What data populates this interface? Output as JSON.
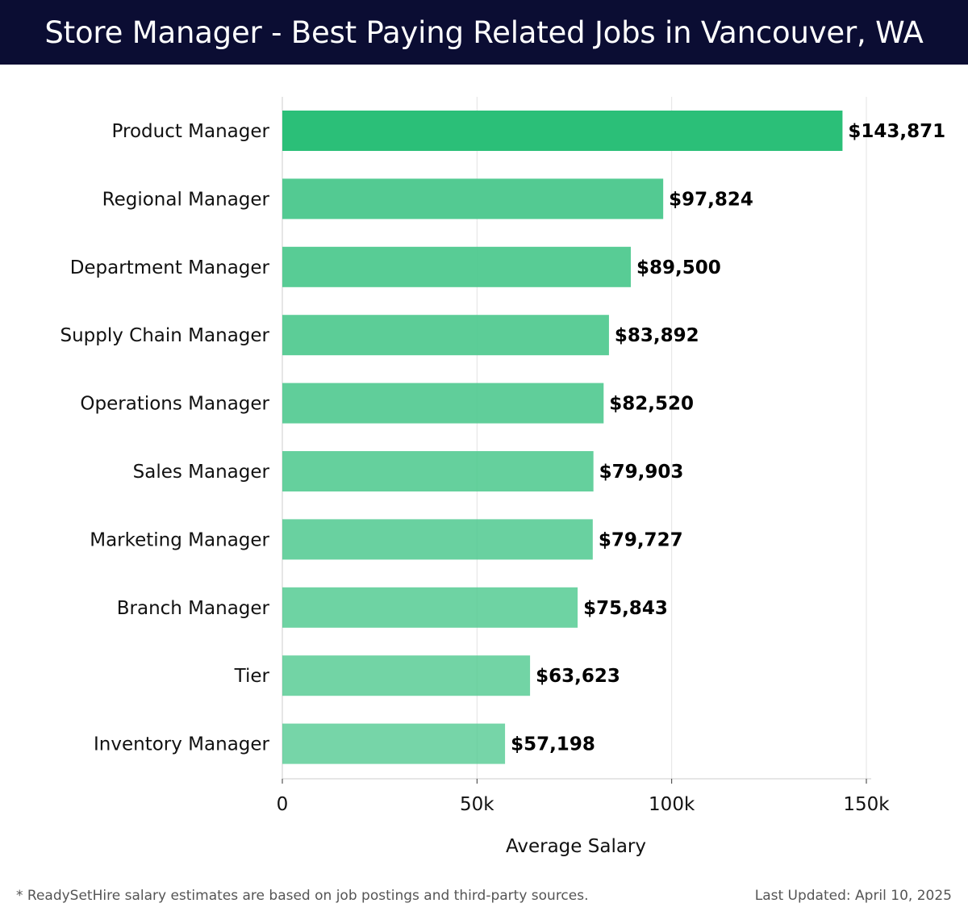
{
  "header": {
    "title": "Store Manager - Best Paying Related Jobs in Vancouver, WA"
  },
  "footer": {
    "note": "* ReadySetHire salary estimates are based on job postings and third-party sources.",
    "updated": "Last Updated: April 10, 2025"
  },
  "colors": {
    "header_bg": "#0b0d33",
    "bar_top": "#2bbf78",
    "bar_other": "#4fc98f"
  },
  "chart_data": {
    "type": "bar",
    "orientation": "horizontal",
    "categories": [
      "Product Manager",
      "Regional Manager",
      "Department Manager",
      "Supply Chain Manager",
      "Operations Manager",
      "Sales Manager",
      "Marketing Manager",
      "Branch Manager",
      "Tier",
      "Inventory Manager"
    ],
    "values": [
      143871,
      97824,
      89500,
      83892,
      82520,
      79903,
      79727,
      75843,
      63623,
      57198
    ],
    "value_labels": [
      "$143,871",
      "$97,824",
      "$89,500",
      "$83,892",
      "$82,520",
      "$79,903",
      "$79,727",
      "$75,843",
      "$63,623",
      "$57,198"
    ],
    "xlabel": "Average Salary",
    "ylabel": "",
    "xlim": [
      0,
      150000
    ],
    "xticks": [
      0,
      50000,
      100000,
      150000
    ],
    "xtick_labels": [
      "0",
      "50k",
      "100k",
      "150k"
    ],
    "grid": true
  }
}
